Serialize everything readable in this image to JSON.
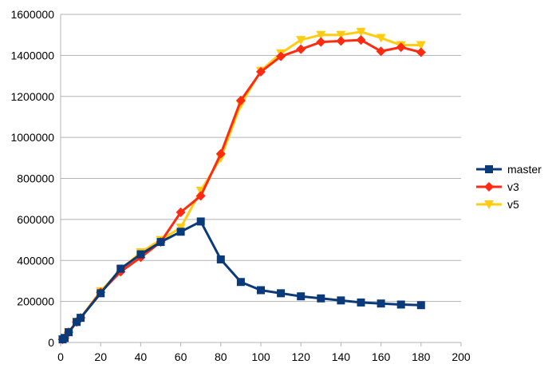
{
  "chart_data": {
    "type": "line",
    "title": "",
    "xlabel": "",
    "ylabel": "",
    "xlim": [
      0,
      200
    ],
    "ylim": [
      0,
      1600000
    ],
    "x_ticks": [
      0,
      20,
      40,
      60,
      80,
      100,
      120,
      140,
      160,
      180,
      200
    ],
    "y_ticks": [
      0,
      200000,
      400000,
      600000,
      800000,
      1000000,
      1200000,
      1400000,
      1600000
    ],
    "x_tick_labels": [
      "0",
      "20",
      "40",
      "60",
      "80",
      "100",
      "120",
      "140",
      "160",
      "180",
      "200"
    ],
    "y_tick_labels": [
      "0",
      "200000",
      "400000",
      "600000",
      "800000",
      "1000000",
      "1200000",
      "1400000",
      "1600000"
    ],
    "grid": true,
    "legend_position": "right",
    "series": [
      {
        "name": "master",
        "color": "#0b3a7a",
        "marker": "square",
        "points": [
          [
            1,
            15000
          ],
          [
            2,
            22000
          ],
          [
            4,
            50000
          ],
          [
            8,
            100000
          ],
          [
            10,
            120000
          ],
          [
            20,
            240000
          ],
          [
            30,
            360000
          ],
          [
            40,
            430000
          ],
          [
            50,
            490000
          ],
          [
            60,
            540000
          ],
          [
            70,
            590000
          ],
          [
            80,
            405000
          ],
          [
            90,
            295000
          ],
          [
            100,
            255000
          ],
          [
            110,
            240000
          ],
          [
            120,
            225000
          ],
          [
            130,
            215000
          ],
          [
            140,
            205000
          ],
          [
            150,
            195000
          ],
          [
            160,
            190000
          ],
          [
            170,
            185000
          ],
          [
            180,
            182000
          ]
        ]
      },
      {
        "name": "v3",
        "color": "#ff2a12",
        "marker": "diamond",
        "points": [
          [
            1,
            15000
          ],
          [
            2,
            22000
          ],
          [
            4,
            50000
          ],
          [
            8,
            100000
          ],
          [
            10,
            120000
          ],
          [
            20,
            245000
          ],
          [
            30,
            345000
          ],
          [
            40,
            415000
          ],
          [
            50,
            490000
          ],
          [
            60,
            635000
          ],
          [
            70,
            715000
          ],
          [
            80,
            920000
          ],
          [
            90,
            1180000
          ],
          [
            100,
            1320000
          ],
          [
            110,
            1395000
          ],
          [
            120,
            1430000
          ],
          [
            130,
            1465000
          ],
          [
            140,
            1470000
          ],
          [
            150,
            1475000
          ],
          [
            160,
            1420000
          ],
          [
            170,
            1440000
          ],
          [
            180,
            1415000
          ]
        ]
      },
      {
        "name": "v5",
        "color": "#ffcc11",
        "marker": "triangle-down",
        "points": [
          [
            1,
            15000
          ],
          [
            2,
            22000
          ],
          [
            4,
            50000
          ],
          [
            8,
            100000
          ],
          [
            10,
            120000
          ],
          [
            20,
            250000
          ],
          [
            30,
            355000
          ],
          [
            40,
            440000
          ],
          [
            50,
            500000
          ],
          [
            60,
            560000
          ],
          [
            70,
            740000
          ],
          [
            80,
            900000
          ],
          [
            90,
            1160000
          ],
          [
            100,
            1325000
          ],
          [
            110,
            1410000
          ],
          [
            120,
            1475000
          ],
          [
            130,
            1500000
          ],
          [
            140,
            1500000
          ],
          [
            150,
            1515000
          ],
          [
            160,
            1485000
          ],
          [
            170,
            1450000
          ],
          [
            180,
            1450000
          ]
        ]
      }
    ]
  }
}
